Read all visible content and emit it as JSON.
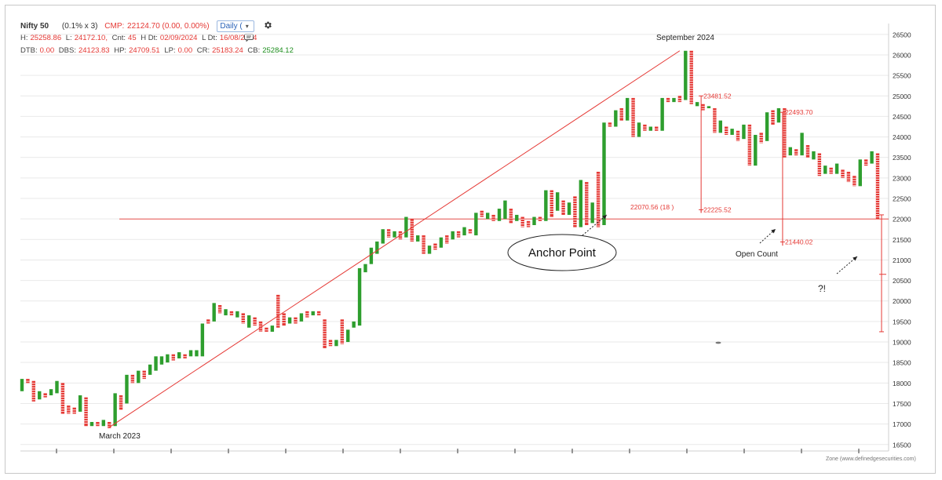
{
  "header": {
    "symbol": "Nifty 50",
    "box_setting": "(0.1% x 3)",
    "cmp_label": "CMP:",
    "cmp_value": "22124.70 (0.00, 0.00%)",
    "interval": "Daily (",
    "row2": {
      "h_label": "H:",
      "h_value": "25258.86",
      "l_label": "L:",
      "l_value": "24172.10,",
      "cnt_label": "Cnt:",
      "cnt_value": "45",
      "hdt_label": "H Dt:",
      "hdt_value": "02/09/2024",
      "ldt_label": "L Dt:",
      "ldt_value": "16/08/2024"
    },
    "row3": {
      "dtb_label": "DTB:",
      "dtb_value": "0.00",
      "dbs_label": "DBS:",
      "dbs_value": "24123.83",
      "hp_label": "HP:",
      "hp_value": "24709.51",
      "lp_label": "LP:",
      "lp_value": "0.00",
      "cr_label": "CR:",
      "cr_value": "25183.24",
      "cb_label": "CB:",
      "cb_value": "25284.12"
    }
  },
  "credit": "Zone (www.definedgesecurities.com)",
  "icons": [
    "gear-icon",
    "comment-icon",
    "chevron-down-icon"
  ],
  "colors": {
    "up": "#2e9e2e",
    "down": "#e53935",
    "trend": "#e53935",
    "grid": "#e9e9e9"
  },
  "chart_data": {
    "type": "point-and-figure",
    "title": "Nifty 50",
    "y_ticks": [
      16500,
      17000,
      17500,
      18000,
      18500,
      19000,
      19500,
      20000,
      20500,
      21000,
      21500,
      22000,
      22500,
      23000,
      23500,
      24000,
      24500,
      25000,
      25500,
      26000,
      26500
    ],
    "ylim": [
      16400,
      26650
    ],
    "grid": true,
    "columns": [
      {
        "d": "up",
        "lo": 17800,
        "hi": 18100
      },
      {
        "d": "down",
        "lo": 18000,
        "hi": 18100
      },
      {
        "d": "down",
        "lo": 17550,
        "hi": 18050
      },
      {
        "d": "up",
        "lo": 17600,
        "hi": 17800
      },
      {
        "d": "down",
        "lo": 17650,
        "hi": 17750
      },
      {
        "d": "up",
        "lo": 17700,
        "hi": 17850
      },
      {
        "d": "up",
        "lo": 17750,
        "hi": 18050
      },
      {
        "d": "down",
        "lo": 17250,
        "hi": 18000
      },
      {
        "d": "down",
        "lo": 17250,
        "hi": 17450
      },
      {
        "d": "down",
        "lo": 17250,
        "hi": 17400
      },
      {
        "d": "up",
        "lo": 17300,
        "hi": 17700
      },
      {
        "d": "down",
        "lo": 16950,
        "hi": 17650
      },
      {
        "d": "up",
        "lo": 16950,
        "hi": 17050
      },
      {
        "d": "down",
        "lo": 16950,
        "hi": 17050
      },
      {
        "d": "up",
        "lo": 16950,
        "hi": 17100
      },
      {
        "d": "down",
        "lo": 16900,
        "hi": 17050
      },
      {
        "d": "up",
        "lo": 16950,
        "hi": 17750
      },
      {
        "d": "down",
        "lo": 17350,
        "hi": 17700
      },
      {
        "d": "up",
        "lo": 17500,
        "hi": 18200
      },
      {
        "d": "down",
        "lo": 18000,
        "hi": 18200
      },
      {
        "d": "up",
        "lo": 18000,
        "hi": 18300
      },
      {
        "d": "down",
        "lo": 18100,
        "hi": 18300
      },
      {
        "d": "up",
        "lo": 18200,
        "hi": 18450
      },
      {
        "d": "up",
        "lo": 18300,
        "hi": 18650
      },
      {
        "d": "up",
        "lo": 18450,
        "hi": 18650
      },
      {
        "d": "up",
        "lo": 18500,
        "hi": 18700
      },
      {
        "d": "down",
        "lo": 18550,
        "hi": 18700
      },
      {
        "d": "up",
        "lo": 18600,
        "hi": 18750
      },
      {
        "d": "down",
        "lo": 18600,
        "hi": 18700
      },
      {
        "d": "up",
        "lo": 18650,
        "hi": 18800
      },
      {
        "d": "up",
        "lo": 18650,
        "hi": 18800
      },
      {
        "d": "up",
        "lo": 18650,
        "hi": 19450
      },
      {
        "d": "down",
        "lo": 19450,
        "hi": 19550
      },
      {
        "d": "up",
        "lo": 19500,
        "hi": 19950
      },
      {
        "d": "down",
        "lo": 19700,
        "hi": 19900
      },
      {
        "d": "up",
        "lo": 19650,
        "hi": 19800
      },
      {
        "d": "down",
        "lo": 19650,
        "hi": 19750
      },
      {
        "d": "up",
        "lo": 19600,
        "hi": 19750
      },
      {
        "d": "down",
        "lo": 19450,
        "hi": 19700
      },
      {
        "d": "up",
        "lo": 19350,
        "hi": 19650
      },
      {
        "d": "down",
        "lo": 19400,
        "hi": 19600
      },
      {
        "d": "down",
        "lo": 19250,
        "hi": 19500
      },
      {
        "d": "down",
        "lo": 19250,
        "hi": 19350
      },
      {
        "d": "up",
        "lo": 19250,
        "hi": 19400
      },
      {
        "d": "down",
        "lo": 19350,
        "hi": 20150
      },
      {
        "d": "down",
        "lo": 19400,
        "hi": 19700
      },
      {
        "d": "up",
        "lo": 19450,
        "hi": 19600
      },
      {
        "d": "down",
        "lo": 19450,
        "hi": 19600
      },
      {
        "d": "up",
        "lo": 19500,
        "hi": 19700
      },
      {
        "d": "down",
        "lo": 19600,
        "hi": 19750
      },
      {
        "d": "up",
        "lo": 19650,
        "hi": 19750
      },
      {
        "d": "down",
        "lo": 19650,
        "hi": 19750
      },
      {
        "d": "down",
        "lo": 18850,
        "hi": 19550
      },
      {
        "d": "down",
        "lo": 18900,
        "hi": 19050
      },
      {
        "d": "up",
        "lo": 18900,
        "hi": 19050
      },
      {
        "d": "down",
        "lo": 18950,
        "hi": 19550
      },
      {
        "d": "up",
        "lo": 19000,
        "hi": 19300
      },
      {
        "d": "up",
        "lo": 19350,
        "hi": 19500
      },
      {
        "d": "up",
        "lo": 19400,
        "hi": 20800
      },
      {
        "d": "up",
        "lo": 20700,
        "hi": 20900
      },
      {
        "d": "up",
        "lo": 20900,
        "hi": 21300
      },
      {
        "d": "up",
        "lo": 21150,
        "hi": 21450
      },
      {
        "d": "up",
        "lo": 21400,
        "hi": 21750
      },
      {
        "d": "down",
        "lo": 21550,
        "hi": 21750
      },
      {
        "d": "up",
        "lo": 21550,
        "hi": 21700
      },
      {
        "d": "down",
        "lo": 21500,
        "hi": 21700
      },
      {
        "d": "up",
        "lo": 21550,
        "hi": 22050
      },
      {
        "d": "down",
        "lo": 21450,
        "hi": 22000
      },
      {
        "d": "up",
        "lo": 21450,
        "hi": 21600
      },
      {
        "d": "down",
        "lo": 21150,
        "hi": 21600
      },
      {
        "d": "up",
        "lo": 21150,
        "hi": 21350
      },
      {
        "d": "down",
        "lo": 21250,
        "hi": 21400
      },
      {
        "d": "up",
        "lo": 21300,
        "hi": 21550
      },
      {
        "d": "down",
        "lo": 21400,
        "hi": 21600
      },
      {
        "d": "up",
        "lo": 21500,
        "hi": 21700
      },
      {
        "d": "down",
        "lo": 21550,
        "hi": 21700
      },
      {
        "d": "up",
        "lo": 21600,
        "hi": 21800
      },
      {
        "d": "down",
        "lo": 21650,
        "hi": 21750
      },
      {
        "d": "up",
        "lo": 21600,
        "hi": 22150
      },
      {
        "d": "down",
        "lo": 22050,
        "hi": 22200
      },
      {
        "d": "up",
        "lo": 22000,
        "hi": 22150
      },
      {
        "d": "down",
        "lo": 21950,
        "hi": 22100
      },
      {
        "d": "up",
        "lo": 21950,
        "hi": 22250
      },
      {
        "d": "up",
        "lo": 22000,
        "hi": 22450
      },
      {
        "d": "down",
        "lo": 21900,
        "hi": 22250
      },
      {
        "d": "up",
        "lo": 21950,
        "hi": 22100
      },
      {
        "d": "down",
        "lo": 21800,
        "hi": 22050
      },
      {
        "d": "down",
        "lo": 21800,
        "hi": 21950
      },
      {
        "d": "up",
        "lo": 21850,
        "hi": 22050
      },
      {
        "d": "down",
        "lo": 21950,
        "hi": 22050
      },
      {
        "d": "up",
        "lo": 21950,
        "hi": 22700
      },
      {
        "d": "down",
        "lo": 22050,
        "hi": 22700
      },
      {
        "d": "up",
        "lo": 22200,
        "hi": 22650
      },
      {
        "d": "down",
        "lo": 22100,
        "hi": 22450
      },
      {
        "d": "up",
        "lo": 22100,
        "hi": 22400
      },
      {
        "d": "down",
        "lo": 21800,
        "hi": 22550
      },
      {
        "d": "up",
        "lo": 21800,
        "hi": 22950
      },
      {
        "d": "down",
        "lo": 21850,
        "hi": 22900
      },
      {
        "d": "up",
        "lo": 21900,
        "hi": 22400
      },
      {
        "d": "down",
        "lo": 21800,
        "hi": 23150
      },
      {
        "d": "up",
        "lo": 21850,
        "hi": 24350
      },
      {
        "d": "down",
        "lo": 24250,
        "hi": 24350
      },
      {
        "d": "up",
        "lo": 24250,
        "hi": 24650
      },
      {
        "d": "down",
        "lo": 24400,
        "hi": 24700
      },
      {
        "d": "up",
        "lo": 24400,
        "hi": 24950
      },
      {
        "d": "down",
        "lo": 24000,
        "hi": 24950
      },
      {
        "d": "up",
        "lo": 24000,
        "hi": 24350
      },
      {
        "d": "down",
        "lo": 24150,
        "hi": 24300
      },
      {
        "d": "up",
        "lo": 24150,
        "hi": 24250
      },
      {
        "d": "down",
        "lo": 24150,
        "hi": 24250
      },
      {
        "d": "up",
        "lo": 24150,
        "hi": 24950
      },
      {
        "d": "down",
        "lo": 24850,
        "hi": 24950
      },
      {
        "d": "up",
        "lo": 24850,
        "hi": 24950
      },
      {
        "d": "down",
        "lo": 24850,
        "hi": 25000
      },
      {
        "d": "up",
        "lo": 24900,
        "hi": 26100
      },
      {
        "d": "down",
        "lo": 24800,
        "hi": 26100
      },
      {
        "d": "up",
        "lo": 24750,
        "hi": 24850
      },
      {
        "d": "down",
        "lo": 24650,
        "hi": 24800
      },
      {
        "d": "up",
        "lo": 24700,
        "hi": 24750
      },
      {
        "d": "down",
        "lo": 24100,
        "hi": 24700
      },
      {
        "d": "up",
        "lo": 24100,
        "hi": 24400
      },
      {
        "d": "down",
        "lo": 24050,
        "hi": 24250
      },
      {
        "d": "up",
        "lo": 24050,
        "hi": 24200
      },
      {
        "d": "down",
        "lo": 23900,
        "hi": 24150
      },
      {
        "d": "up",
        "lo": 23950,
        "hi": 24300
      },
      {
        "d": "down",
        "lo": 23300,
        "hi": 24300
      },
      {
        "d": "up",
        "lo": 23300,
        "hi": 24050
      },
      {
        "d": "down",
        "lo": 23850,
        "hi": 24100
      },
      {
        "d": "up",
        "lo": 23900,
        "hi": 24600
      },
      {
        "d": "down",
        "lo": 24300,
        "hi": 24650
      },
      {
        "d": "up",
        "lo": 24350,
        "hi": 24700
      },
      {
        "d": "down",
        "lo": 23500,
        "hi": 24700
      },
      {
        "d": "up",
        "lo": 23550,
        "hi": 23750
      },
      {
        "d": "down",
        "lo": 23550,
        "hi": 23700
      },
      {
        "d": "up",
        "lo": 23550,
        "hi": 24100
      },
      {
        "d": "down",
        "lo": 23500,
        "hi": 23800
      },
      {
        "d": "up",
        "lo": 23450,
        "hi": 23650
      },
      {
        "d": "down",
        "lo": 23050,
        "hi": 23600
      },
      {
        "d": "up",
        "lo": 23100,
        "hi": 23300
      },
      {
        "d": "down",
        "lo": 23100,
        "hi": 23250
      },
      {
        "d": "up",
        "lo": 23100,
        "hi": 23350
      },
      {
        "d": "down",
        "lo": 23000,
        "hi": 23200
      },
      {
        "d": "down",
        "lo": 22900,
        "hi": 23150
      },
      {
        "d": "down",
        "lo": 22800,
        "hi": 23050
      },
      {
        "d": "up",
        "lo": 22800,
        "hi": 23450
      },
      {
        "d": "down",
        "lo": 23300,
        "hi": 23450
      },
      {
        "d": "up",
        "lo": 23350,
        "hi": 23650
      },
      {
        "d": "down",
        "lo": 22000,
        "hi": 23600
      }
    ],
    "trendline": {
      "from": {
        "col": 15,
        "y": 16920
      },
      "to": {
        "col": 113,
        "y": 26100
      }
    },
    "horizontal_line": 22000,
    "vlines": [
      {
        "label": "23481.52",
        "col": 116,
        "y_top": 25000,
        "y_bottom": 22150
      },
      {
        "label": "22225.52",
        "col": 116,
        "y_top": 22225,
        "y_bottom": 22150
      },
      {
        "label": "22493.70",
        "col": 130,
        "y_top": 24600,
        "y_bottom": 21350
      },
      {
        "label": "21440.02",
        "col": 130,
        "y_top": 21440,
        "y_bottom": 21350
      },
      {
        "label": "",
        "col": 147,
        "y_top": 22100,
        "y_bottom": 19250
      }
    ],
    "annotations": [
      {
        "text": "March 2023",
        "kind": "date"
      },
      {
        "text": "September 2024",
        "kind": "date"
      },
      {
        "text": "22070.56 (18 )",
        "kind": "value"
      },
      {
        "text": "Anchor Point",
        "kind": "callout"
      },
      {
        "text": "Open Count",
        "kind": "callout"
      },
      {
        "text": "?!",
        "kind": "callout"
      }
    ]
  }
}
